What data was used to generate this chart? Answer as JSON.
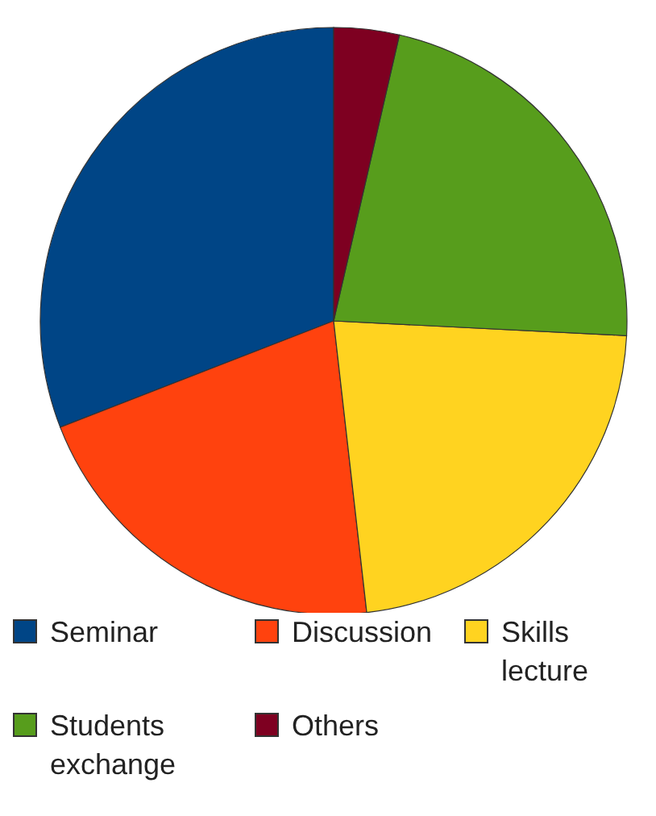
{
  "chart_data": {
    "type": "pie",
    "categories": [
      "Seminar",
      "Discussion",
      "Skills lecture",
      "Students exchange",
      "Others"
    ],
    "values": [
      30.9,
      20.9,
      22.4,
      22.2,
      3.6
    ],
    "colors": [
      "#004586",
      "#ff420e",
      "#ffd320",
      "#579d1c",
      "#7e0021"
    ],
    "legend": "bottom"
  }
}
